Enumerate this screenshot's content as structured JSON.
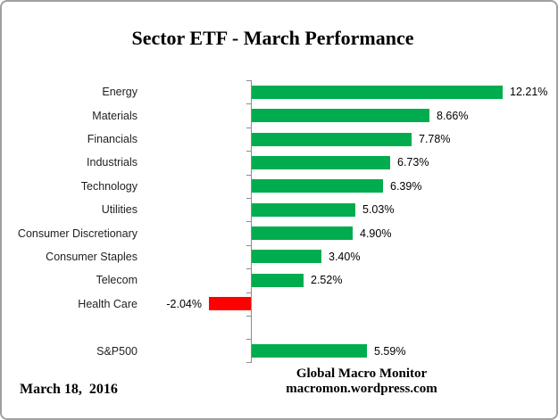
{
  "chart_data": {
    "type": "bar",
    "orientation": "horizontal",
    "title": "Sector ETF - March Performance",
    "value_axis": {
      "min": -5,
      "max": 15,
      "visible": false,
      "gridlines": false
    },
    "colors": {
      "positive_bar": "#00AC4E",
      "negative_bar": "#FF0000",
      "axis_line": "#8C8C8C"
    },
    "gap_after_index": 9,
    "rows": [
      {
        "label": "Energy",
        "value": 12.21,
        "display": "12.21%"
      },
      {
        "label": "Materials",
        "value": 8.66,
        "display": "8.66%"
      },
      {
        "label": "Financials",
        "value": 7.78,
        "display": "7.78%"
      },
      {
        "label": "Industrials",
        "value": 6.73,
        "display": "6.73%"
      },
      {
        "label": "Technology",
        "value": 6.39,
        "display": "6.39%"
      },
      {
        "label": "Utilities",
        "value": 5.03,
        "display": "5.03%"
      },
      {
        "label": "Consumer Discretionary",
        "value": 4.9,
        "display": "4.90%"
      },
      {
        "label": "Consumer Staples",
        "value": 3.4,
        "display": "3.40%"
      },
      {
        "label": "Telecom",
        "value": 2.52,
        "display": "2.52%"
      },
      {
        "label": "Health Care",
        "value": -2.04,
        "display": "-2.04%"
      },
      {
        "label": "S&P500",
        "value": 5.59,
        "display": "5.59%"
      }
    ]
  },
  "footer": {
    "date": "March 18,  2016",
    "attribution_line1": "Global Macro Monitor",
    "attribution_line2": "macromon.wordpress.com"
  }
}
